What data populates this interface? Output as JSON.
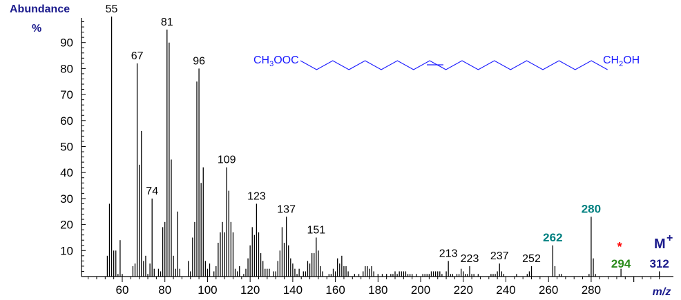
{
  "chart_data": {
    "type": "bar",
    "title": "",
    "xlabel": "m/z",
    "ylabel": "Abundance %",
    "xlim": [
      40,
      315
    ],
    "ylim": [
      0,
      100
    ],
    "x_ticks": [
      60,
      80,
      100,
      120,
      140,
      160,
      180,
      200,
      220,
      240,
      260,
      280
    ],
    "y_ticks": [
      10,
      20,
      30,
      40,
      50,
      60,
      70,
      80,
      90
    ],
    "structure": {
      "left": "CH3OOC",
      "right": "CH2OH",
      "double_bond": "cis"
    },
    "molecular_ion_label": "M+",
    "star_marker": "*",
    "colors": {
      "axis": "#000000",
      "ylabel": "#1a1a8c",
      "molecule": "#1a1aff",
      "teal": "#008080",
      "green": "#2a8a1a",
      "navy": "#1a1a8c",
      "star": "#ff0000"
    },
    "labels": [
      {
        "mz": 55,
        "text": "55",
        "color": "#000000"
      },
      {
        "mz": 67,
        "text": "67",
        "color": "#000000"
      },
      {
        "mz": 74,
        "text": "74",
        "color": "#000000"
      },
      {
        "mz": 81,
        "text": "81",
        "color": "#000000"
      },
      {
        "mz": 96,
        "text": "96",
        "color": "#000000"
      },
      {
        "mz": 109,
        "text": "109",
        "color": "#000000"
      },
      {
        "mz": 123,
        "text": "123",
        "color": "#000000"
      },
      {
        "mz": 137,
        "text": "137",
        "color": "#000000"
      },
      {
        "mz": 151,
        "text": "151",
        "color": "#000000"
      },
      {
        "mz": 213,
        "text": "213",
        "color": "#000000"
      },
      {
        "mz": 223,
        "text": "223",
        "color": "#000000"
      },
      {
        "mz": 237,
        "text": "237",
        "color": "#000000"
      },
      {
        "mz": 252,
        "text": "252",
        "color": "#000000"
      },
      {
        "mz": 262,
        "text": "262",
        "color": "#008080"
      },
      {
        "mz": 280,
        "text": "280",
        "color": "#008080"
      },
      {
        "mz": 294,
        "text": "294",
        "color": "#2a8a1a"
      },
      {
        "mz": 312,
        "text": "312",
        "color": "#1a1a8c"
      }
    ],
    "peaks": [
      [
        53,
        8
      ],
      [
        54,
        28
      ],
      [
        55,
        100
      ],
      [
        56,
        10
      ],
      [
        57,
        10
      ],
      [
        58,
        1
      ],
      [
        59,
        14
      ],
      [
        60,
        1
      ],
      [
        65,
        4
      ],
      [
        66,
        5
      ],
      [
        67,
        82
      ],
      [
        68,
        43
      ],
      [
        69,
        56
      ],
      [
        70,
        6
      ],
      [
        71,
        8
      ],
      [
        72,
        1
      ],
      [
        73,
        5
      ],
      [
        74,
        30
      ],
      [
        75,
        3
      ],
      [
        77,
        3
      ],
      [
        78,
        2
      ],
      [
        79,
        19
      ],
      [
        80,
        21
      ],
      [
        81,
        95
      ],
      [
        82,
        90
      ],
      [
        83,
        45
      ],
      [
        84,
        8
      ],
      [
        85,
        3
      ],
      [
        86,
        25
      ],
      [
        87,
        3
      ],
      [
        91,
        6
      ],
      [
        92,
        2
      ],
      [
        93,
        15
      ],
      [
        94,
        21
      ],
      [
        95,
        75
      ],
      [
        96,
        80
      ],
      [
        97,
        36
      ],
      [
        98,
        42
      ],
      [
        99,
        6
      ],
      [
        100,
        3
      ],
      [
        101,
        5
      ],
      [
        103,
        2
      ],
      [
        104,
        4
      ],
      [
        105,
        13
      ],
      [
        106,
        17
      ],
      [
        107,
        21
      ],
      [
        108,
        17
      ],
      [
        109,
        42
      ],
      [
        110,
        33
      ],
      [
        111,
        21
      ],
      [
        112,
        17
      ],
      [
        113,
        3
      ],
      [
        114,
        2
      ],
      [
        115,
        4
      ],
      [
        117,
        1
      ],
      [
        118,
        3
      ],
      [
        119,
        7
      ],
      [
        120,
        12
      ],
      [
        121,
        19
      ],
      [
        122,
        16
      ],
      [
        123,
        28
      ],
      [
        124,
        17
      ],
      [
        125,
        9
      ],
      [
        126,
        6
      ],
      [
        127,
        3
      ],
      [
        128,
        3
      ],
      [
        129,
        3
      ],
      [
        131,
        2
      ],
      [
        132,
        2
      ],
      [
        133,
        6
      ],
      [
        134,
        10
      ],
      [
        135,
        19
      ],
      [
        136,
        13
      ],
      [
        137,
        23
      ],
      [
        138,
        12
      ],
      [
        139,
        7
      ],
      [
        140,
        5
      ],
      [
        141,
        3
      ],
      [
        142,
        1
      ],
      [
        143,
        3
      ],
      [
        145,
        2
      ],
      [
        146,
        2
      ],
      [
        147,
        6
      ],
      [
        148,
        5
      ],
      [
        149,
        9
      ],
      [
        150,
        9
      ],
      [
        151,
        15
      ],
      [
        152,
        10
      ],
      [
        153,
        4
      ],
      [
        154,
        2
      ],
      [
        157,
        1
      ],
      [
        158,
        1
      ],
      [
        159,
        3
      ],
      [
        160,
        2
      ],
      [
        161,
        7
      ],
      [
        162,
        5
      ],
      [
        163,
        8
      ],
      [
        164,
        4
      ],
      [
        165,
        4
      ],
      [
        166,
        2
      ],
      [
        169,
        1
      ],
      [
        171,
        1
      ],
      [
        173,
        2
      ],
      [
        174,
        4
      ],
      [
        175,
        4
      ],
      [
        176,
        3
      ],
      [
        177,
        4
      ],
      [
        178,
        2
      ],
      [
        180,
        1
      ],
      [
        182,
        1
      ],
      [
        184,
        1
      ],
      [
        186,
        1
      ],
      [
        187,
        1
      ],
      [
        188,
        2
      ],
      [
        189,
        1
      ],
      [
        190,
        2
      ],
      [
        191,
        2
      ],
      [
        192,
        2
      ],
      [
        193,
        2
      ],
      [
        194,
        1
      ],
      [
        195,
        1
      ],
      [
        196,
        1
      ],
      [
        198,
        1
      ],
      [
        201,
        1
      ],
      [
        202,
        1
      ],
      [
        203,
        1
      ],
      [
        204,
        1
      ],
      [
        205,
        2
      ],
      [
        206,
        2
      ],
      [
        207,
        2
      ],
      [
        208,
        2
      ],
      [
        209,
        2
      ],
      [
        210,
        1
      ],
      [
        212,
        2
      ],
      [
        213,
        6
      ],
      [
        214,
        1
      ],
      [
        215,
        1
      ],
      [
        217,
        1
      ],
      [
        218,
        1
      ],
      [
        219,
        3
      ],
      [
        220,
        2
      ],
      [
        221,
        1
      ],
      [
        222,
        1
      ],
      [
        223,
        4
      ],
      [
        224,
        1
      ],
      [
        225,
        1
      ],
      [
        227,
        1
      ],
      [
        233,
        1
      ],
      [
        234,
        1
      ],
      [
        235,
        1
      ],
      [
        236,
        2
      ],
      [
        237,
        5
      ],
      [
        238,
        2
      ],
      [
        239,
        1
      ],
      [
        245,
        1
      ],
      [
        250,
        1
      ],
      [
        251,
        2
      ],
      [
        252,
        4
      ],
      [
        262,
        12
      ],
      [
        263,
        4
      ],
      [
        265,
        1
      ],
      [
        266,
        1
      ],
      [
        279,
        1
      ],
      [
        280,
        23
      ],
      [
        281,
        7
      ],
      [
        282,
        1
      ],
      [
        294,
        3
      ],
      [
        312,
        2
      ]
    ]
  }
}
